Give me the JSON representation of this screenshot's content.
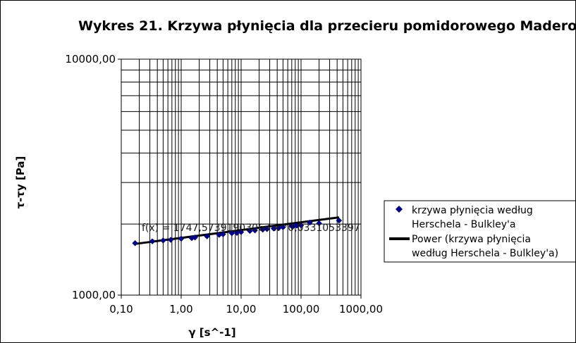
{
  "chart_data": {
    "type": "scatter",
    "title": "Wykres 21. Krzywa płynięcia dla przecieru pomidorowego Madero",
    "xlabel": "γ [s^-1]",
    "ylabel": "τ-τy [Pa]",
    "x_scale": "log",
    "y_scale": "log",
    "xlim": [
      0.1,
      1000
    ],
    "ylim": [
      1000,
      10000
    ],
    "x_tick_labels": [
      "0,10",
      "1,00",
      "10,00",
      "100,00",
      "1000,00"
    ],
    "y_tick_labels": [
      "1000,00",
      "10000,00"
    ],
    "grid": true,
    "legend_position": "right",
    "series": [
      {
        "name": "krzywa płynięcia według Herschela - Bulkley'a",
        "kind": "points",
        "color": "#000080",
        "x": [
          0.17,
          0.33,
          0.5,
          0.67,
          1.0,
          1.5,
          1.7,
          2.7,
          4.3,
          5.0,
          7.0,
          8.5,
          10.0,
          14.0,
          17.0,
          23.0,
          27.0,
          35.0,
          43.0,
          50.0,
          70.0,
          75.0,
          85.0,
          100.0,
          140.0,
          200.0,
          430.0
        ],
        "y": [
          1660,
          1690,
          1705,
          1715,
          1735,
          1745,
          1755,
          1775,
          1800,
          1810,
          1830,
          1835,
          1850,
          1870,
          1880,
          1895,
          1905,
          1915,
          1930,
          1940,
          1960,
          1965,
          1970,
          1975,
          2030,
          2015,
          2070
        ]
      },
      {
        "name": "Power (krzywa płynięcia według Herschela - Bulkley'a)",
        "kind": "trendline",
        "color": "#000000",
        "equation": "f(x) = 1747,57391903067 x^0,0331053397",
        "coefficient": 1747.57391903067,
        "exponent": 0.0331053397,
        "x_range": [
          0.17,
          430
        ]
      }
    ]
  },
  "legend": {
    "item1_line1": "krzywa płynięcia według",
    "item1_line2": "Herschela - Bulkley'a",
    "item2_line1": "Power (krzywa płynięcia",
    "item2_line2": "według Herschela - Bulkley'a)"
  }
}
